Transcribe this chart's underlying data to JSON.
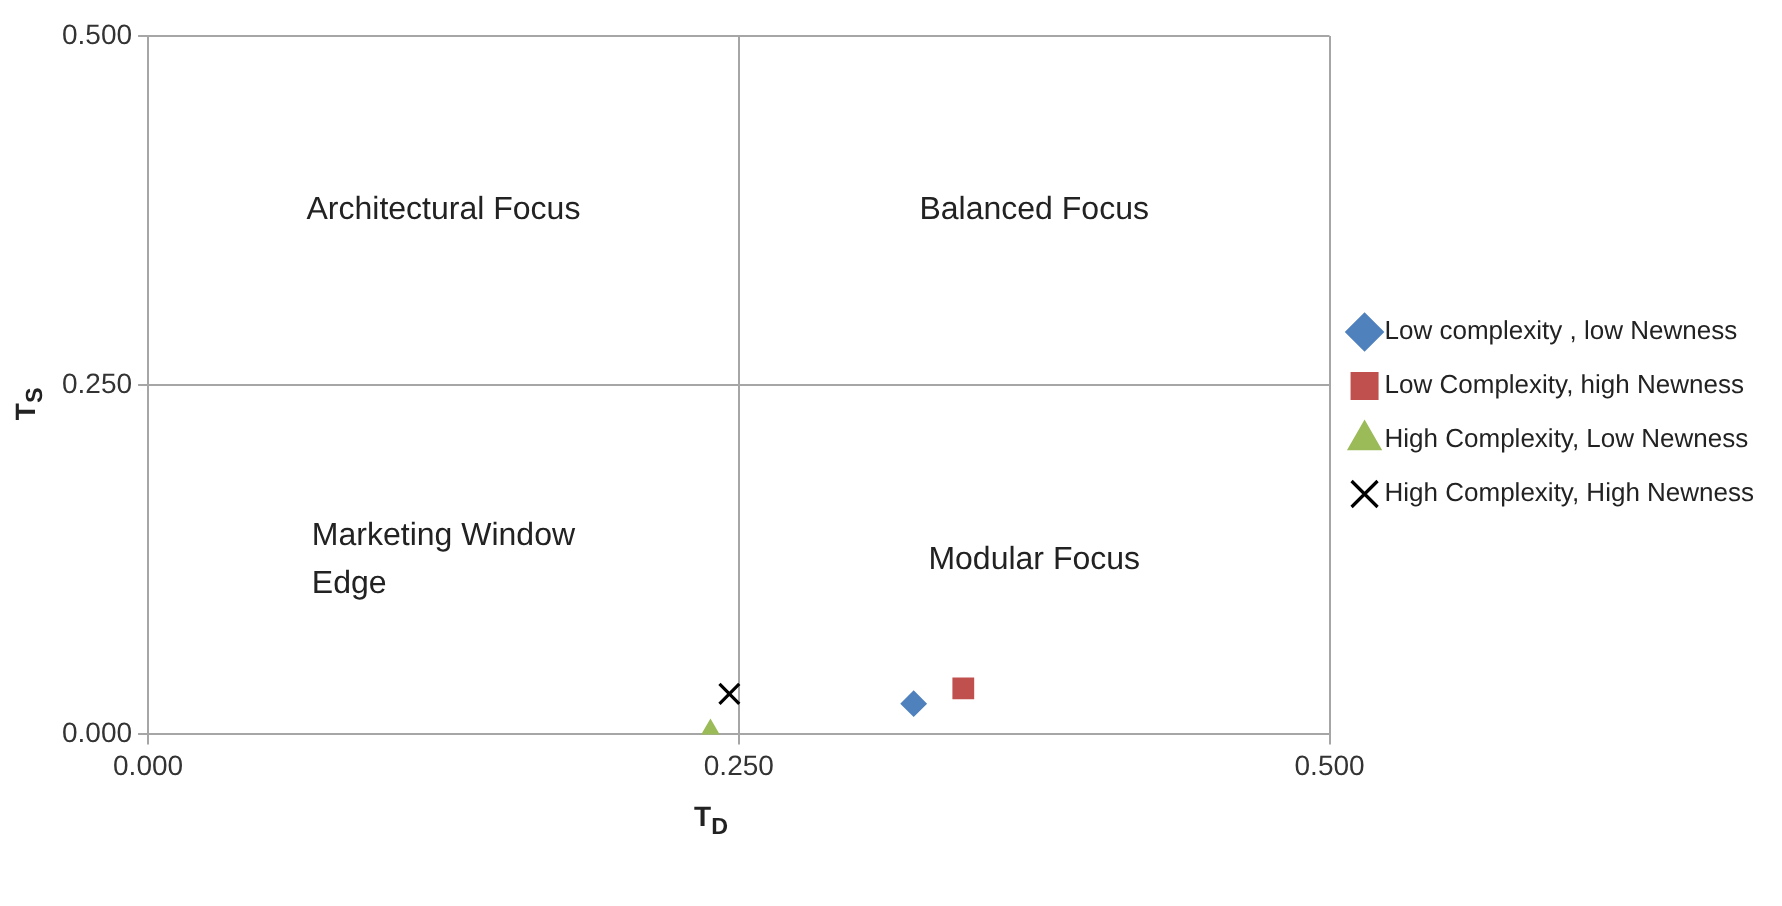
{
  "chart_data": {
    "type": "scatter",
    "xlabel": "T$_{D}$",
    "ylabel": "T$_{S}$",
    "xlim": [
      0,
      0.5
    ],
    "ylim": [
      0,
      0.5
    ],
    "xticks": [
      {
        "value": 0,
        "label": "0.000"
      },
      {
        "value": 0.25,
        "label": "0.250"
      },
      {
        "value": 0.5,
        "label": "0.500"
      }
    ],
    "yticks": [
      {
        "value": 0,
        "label": "0.000"
      },
      {
        "value": 0.25,
        "label": "0.250"
      },
      {
        "value": 0.5,
        "label": "0.500"
      }
    ],
    "grid": true,
    "legend": "right",
    "annotations": [
      "Architectural Focus",
      "Balanced Focus",
      "Marketing Window Edge",
      "Modular Focus"
    ],
    "series": [
      {
        "name": "Low complexity , low Newness",
        "color": "#4f81bd",
        "marker": "diamond",
        "x": [
          0.324
        ],
        "values": [
          0.022
        ]
      },
      {
        "name": "Low Complexity, high Newness",
        "color": "#c0504d",
        "marker": "square",
        "x": [
          0.345
        ],
        "values": [
          0.033
        ]
      },
      {
        "name": "High Complexity, Low Newness",
        "color": "#9bbb59",
        "marker": "triangle",
        "x": [
          0.238
        ],
        "values": [
          0.0
        ]
      },
      {
        "name": "High Complexity, High Newness",
        "color": "#000000",
        "marker": "cross",
        "x": [
          0.246
        ],
        "values": [
          0.029
        ]
      }
    ]
  }
}
